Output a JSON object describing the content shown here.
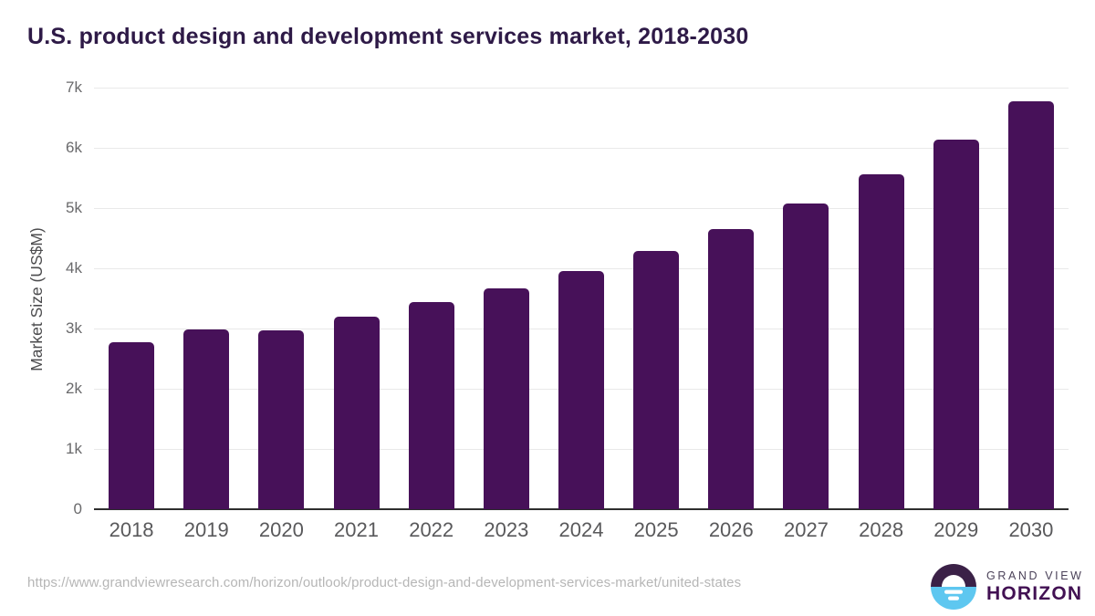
{
  "title": "U.S. product design and development services market, 2018-2030",
  "chart_data": {
    "type": "bar",
    "title": "U.S. product design and development services market, 2018-2030",
    "categories": [
      "2018",
      "2019",
      "2020",
      "2021",
      "2022",
      "2023",
      "2024",
      "2025",
      "2026",
      "2027",
      "2028",
      "2029",
      "2030"
    ],
    "values": [
      2770,
      2990,
      2970,
      3200,
      3440,
      3665,
      3950,
      4290,
      4650,
      5070,
      5560,
      6130,
      6770
    ],
    "xlabel": "",
    "ylabel": "Market Size (US$M)",
    "ylim": [
      0,
      7000
    ],
    "ytick_step": 1000,
    "ytick_labels": [
      "0",
      "1k",
      "2k",
      "3k",
      "4k",
      "5k",
      "6k",
      "7k"
    ],
    "grid": true,
    "legend_position": "none",
    "bar_color": "#471159"
  },
  "footer": {
    "source_url": "https://www.grandviewresearch.com/horizon/outlook/product-design-and-development-services-market/united-states",
    "logo": {
      "line1": "GRAND VIEW",
      "line2": "HORIZON",
      "circle_top_color": "#3b2147",
      "circle_bottom_color": "#5ec7f0"
    }
  },
  "colors": {
    "title": "#2e1a47",
    "bar": "#471159",
    "gridline": "#e9e9e9",
    "axis_line": "#2e2e2e",
    "tick_label": "#6a6a6c",
    "x_label": "#59595b",
    "url_text": "#b6b6b6"
  }
}
